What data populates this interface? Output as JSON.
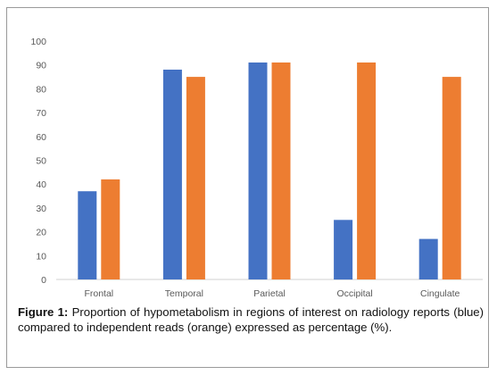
{
  "chart_data": {
    "type": "bar",
    "categories": [
      "Frontal",
      "Temporal",
      "Parietal",
      "Occipital",
      "Cingulate"
    ],
    "series": [
      {
        "values": [
          37,
          88,
          91,
          25,
          17
        ],
        "color": "#4472C4"
      },
      {
        "values": [
          42,
          85,
          91,
          91,
          85
        ],
        "color": "#ED7D31"
      }
    ],
    "ylim": [
      0,
      100
    ],
    "yticks": [
      0,
      10,
      20,
      30,
      40,
      50,
      60,
      70,
      80,
      90,
      100
    ],
    "grid": false,
    "legend": "none"
  },
  "caption": {
    "label": "Figure 1:",
    "text": " Proportion of hypometabolism in regions of interest on radiology reports (blue) compared to independent reads (orange) expressed as percentage (%)."
  }
}
